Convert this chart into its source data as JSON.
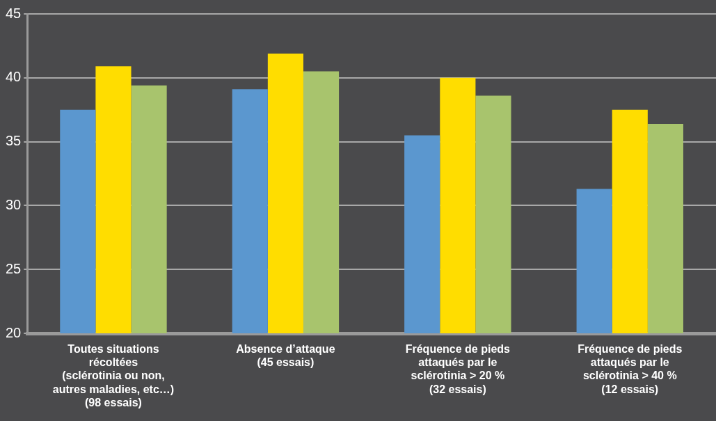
{
  "chart_data": {
    "type": "bar",
    "categories": [
      "Toutes situations\nrécoltées\n(sclérotinia ou non,\nautres maladies, etc…)\n(98 essais)",
      "Absence d’attaque\n(45 essais)",
      "Fréquence de pieds\nattaqués par le\nsclérotinia > 20 %\n(32 essais)",
      "Fréquence de pieds\nattaqués par le\nsclérotinia > 40 %\n(12 essais)"
    ],
    "series": [
      {
        "color": "#5b97cf",
        "values": [
          37.5,
          39.1,
          35.5,
          31.3
        ]
      },
      {
        "color": "#ffdd00",
        "values": [
          40.9,
          41.9,
          40.0,
          37.5
        ]
      },
      {
        "color": "#a8c46d",
        "values": [
          39.4,
          40.5,
          38.6,
          36.4
        ]
      }
    ],
    "ylim": [
      20,
      45
    ],
    "yticks": [
      20,
      25,
      30,
      35,
      40,
      45
    ],
    "grid": "y",
    "legend": false
  }
}
